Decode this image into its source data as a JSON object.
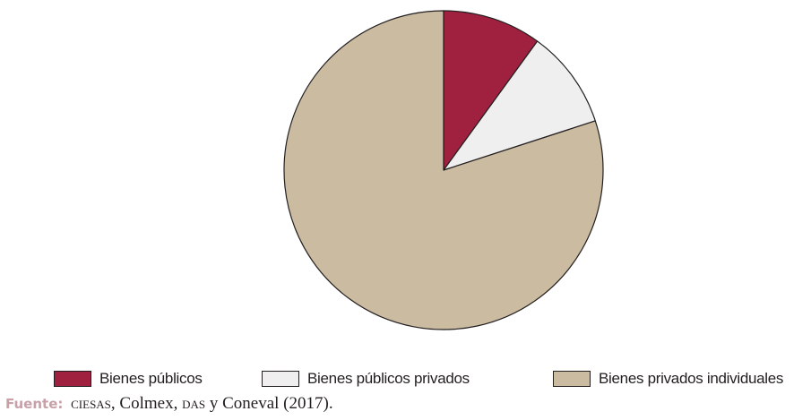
{
  "chart_data": {
    "type": "pie",
    "title": "",
    "start_angle_deg": 0,
    "direction": "clockwise",
    "slices": [
      {
        "label": "Bienes públicos",
        "value": 10,
        "color": "#a0203f"
      },
      {
        "label": "Bienes públicos privados",
        "value": 10,
        "color": "#efefef"
      },
      {
        "label": "Bienes privados individuales",
        "value": 80,
        "color": "#cbbba0"
      }
    ],
    "legend": {
      "position": "bottom"
    }
  },
  "legend_items": [
    {
      "label": "Bienes públicos",
      "color": "#a0203f"
    },
    {
      "label": "Bienes públicos privados",
      "color": "#efefef"
    },
    {
      "label": "Bienes privados individuales",
      "color": "#cbbba0"
    }
  ],
  "source": {
    "label": "Fuente:",
    "part1": "CIESAS",
    "part2": ", Colmex, ",
    "part3": "DAS",
    "part4": " y Coneval (2017)."
  },
  "colors": {
    "stroke": "#231f20",
    "source_label": "#c8a0a8"
  }
}
